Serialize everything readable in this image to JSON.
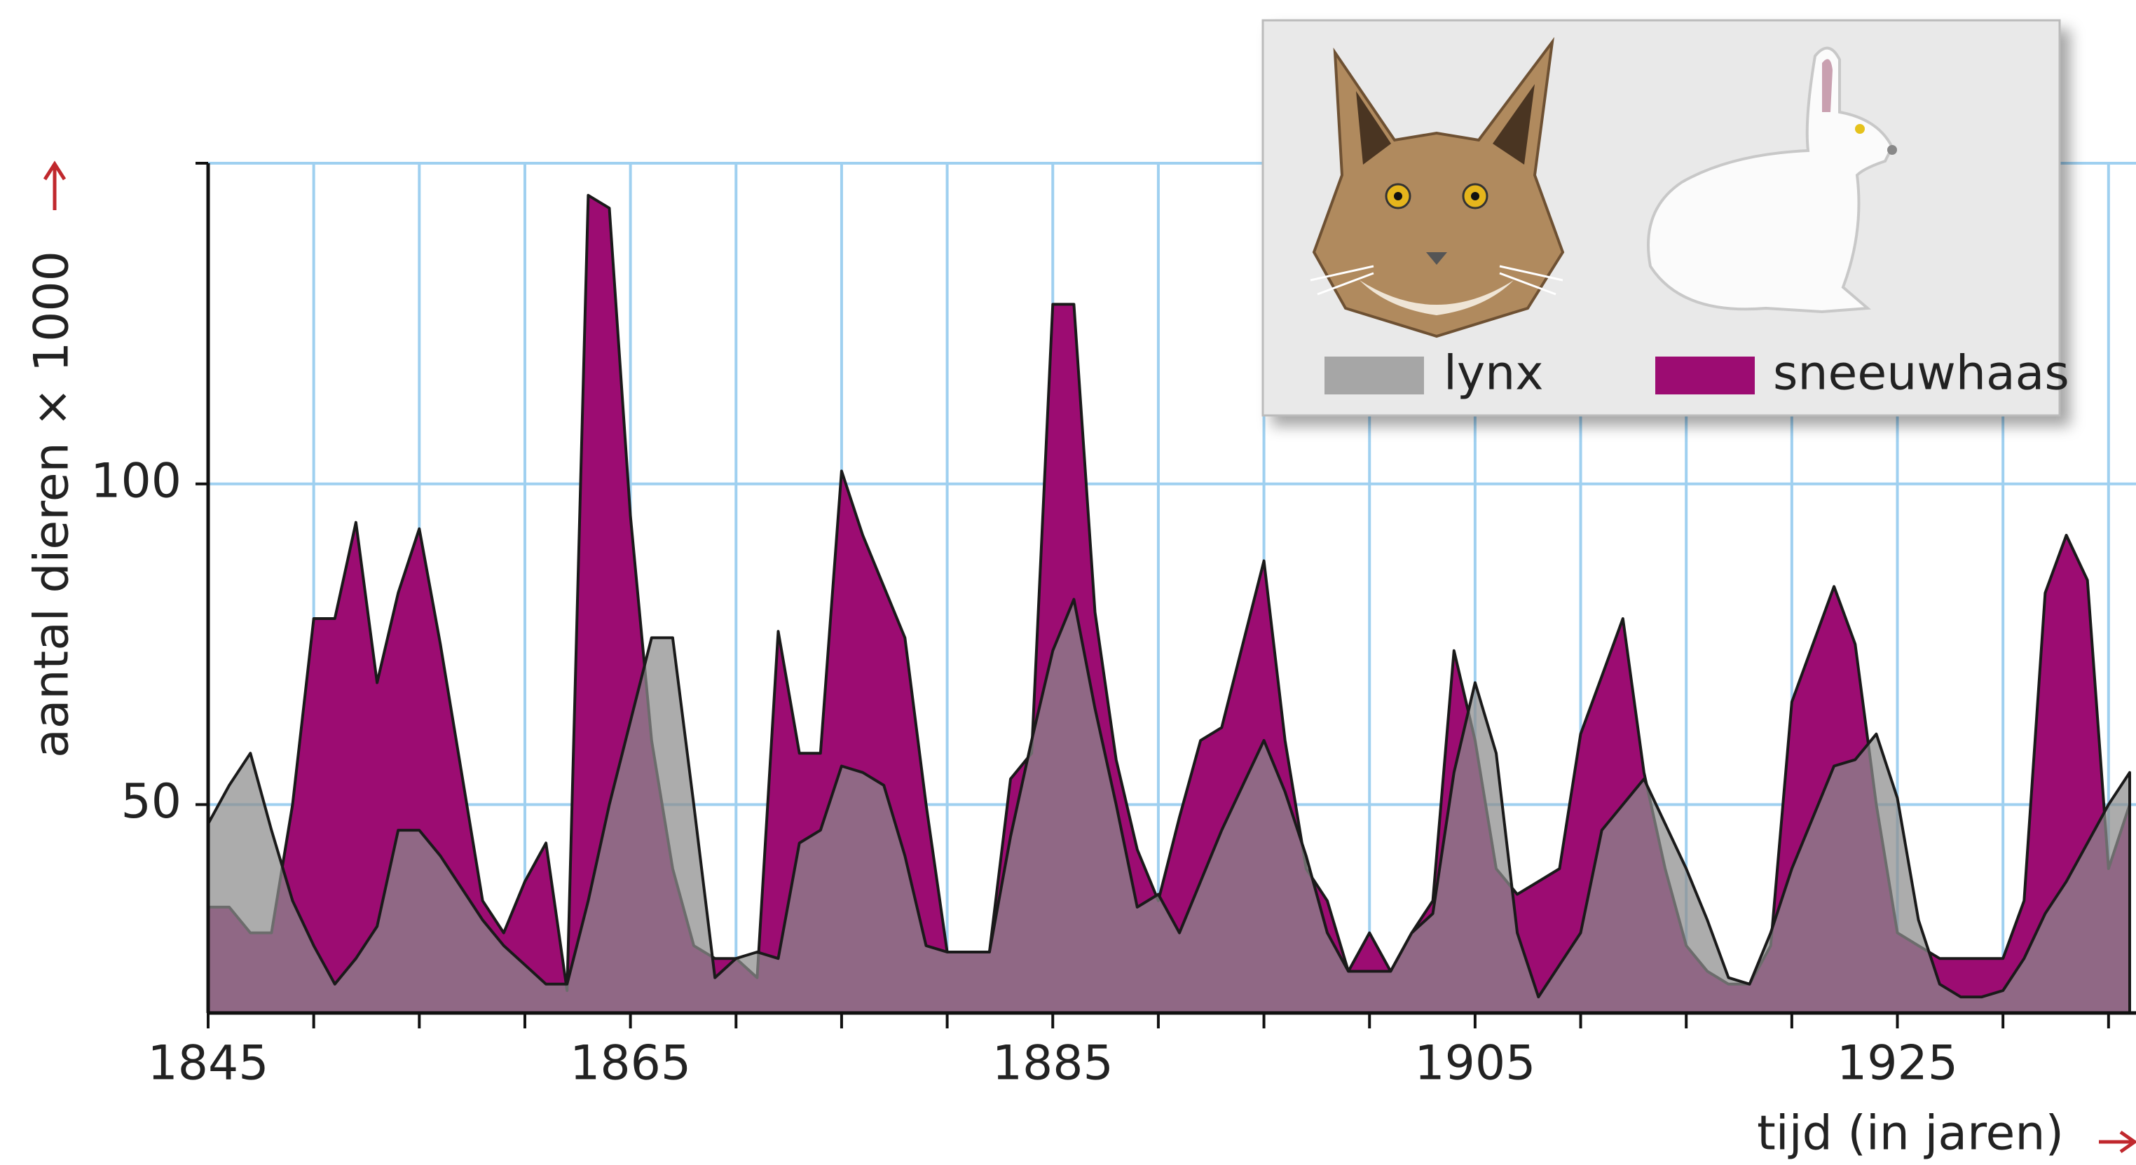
{
  "chart_data": {
    "type": "area",
    "y_label": "aantal dieren × 1000",
    "x_label": "tijd (in jaren)",
    "x": [
      1845,
      1846,
      1847,
      1848,
      1849,
      1850,
      1851,
      1852,
      1853,
      1854,
      1855,
      1856,
      1857,
      1858,
      1859,
      1860,
      1861,
      1862,
      1863,
      1864,
      1865,
      1866,
      1867,
      1868,
      1869,
      1870,
      1871,
      1872,
      1873,
      1874,
      1875,
      1876,
      1877,
      1878,
      1879,
      1880,
      1881,
      1882,
      1883,
      1884,
      1885,
      1886,
      1887,
      1888,
      1889,
      1890,
      1891,
      1892,
      1893,
      1894,
      1895,
      1896,
      1897,
      1898,
      1899,
      1900,
      1901,
      1902,
      1903,
      1904,
      1905,
      1906,
      1907,
      1908,
      1909,
      1910,
      1911,
      1912,
      1913,
      1914,
      1915,
      1916,
      1917,
      1918,
      1919,
      1920,
      1921,
      1922,
      1923,
      1924,
      1925,
      1926,
      1927,
      1928,
      1929,
      1930,
      1931,
      1932,
      1933,
      1934,
      1935,
      1936
    ],
    "series": [
      {
        "name": "lynx",
        "color": "#8c8c8c",
        "values": [
          47,
          53,
          58,
          46,
          35,
          28,
          22,
          26,
          31,
          46,
          46,
          42,
          37,
          32,
          28,
          25,
          22,
          22,
          35,
          50,
          63,
          76,
          76,
          50,
          23,
          26,
          27,
          26,
          44,
          46,
          56,
          55,
          53,
          42,
          28,
          27,
          27,
          27,
          45,
          60,
          74,
          82,
          65,
          50,
          34,
          36,
          30,
          38,
          46,
          53,
          60,
          52,
          42,
          30,
          24,
          24,
          24,
          30,
          33,
          55,
          69,
          58,
          30,
          20,
          25,
          30,
          46,
          50,
          54,
          47,
          40,
          32,
          23,
          22,
          30,
          40,
          48,
          56,
          57,
          61,
          51,
          32,
          22,
          20,
          20,
          21,
          26,
          33,
          38,
          44,
          50,
          55
        ]
      },
      {
        "name": "sneeuwhaas",
        "color": "#9c0c72",
        "values": [
          34,
          34,
          30,
          30,
          50,
          79,
          79,
          94,
          69,
          83,
          93,
          75,
          55,
          35,
          30,
          38,
          44,
          21,
          145,
          143,
          95,
          60,
          40,
          28,
          26,
          26,
          23,
          77,
          58,
          58,
          102,
          92,
          84,
          76,
          50,
          27,
          27,
          27,
          54,
          58,
          128,
          128,
          80,
          57,
          43,
          35,
          48,
          60,
          62,
          75,
          88,
          60,
          40,
          35,
          24,
          30,
          24,
          30,
          35,
          74,
          60,
          40,
          36,
          38,
          40,
          61,
          70,
          79,
          55,
          40,
          28,
          24,
          22,
          22,
          28,
          66,
          75,
          84,
          75,
          50,
          30,
          28,
          26,
          26,
          26,
          26,
          35,
          83,
          92,
          85,
          40,
          50
        ]
      }
    ],
    "xlim": [
      1845,
      1936.3
    ],
    "ylim": [
      17.5,
      150
    ],
    "xticks": [
      1845,
      1865,
      1885,
      1905,
      1925
    ],
    "xminorticks": [
      1850,
      1855,
      1860,
      1870,
      1875,
      1880,
      1890,
      1895,
      1900,
      1910,
      1915,
      1920,
      1930,
      1935
    ],
    "yticks": [
      50,
      100
    ],
    "grid": true
  }
}
